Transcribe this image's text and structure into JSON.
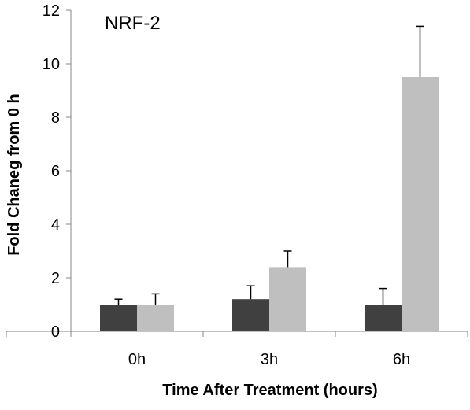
{
  "chart_data": {
    "type": "bar",
    "title": "NRF-2",
    "xlabel": "Time After Treatment (hours)",
    "ylabel": "Fold Chaneg from 0 h",
    "categories": [
      "0h",
      "3h",
      "6h"
    ],
    "ylim": [
      0,
      12
    ],
    "yticks": [
      0,
      2,
      4,
      6,
      8,
      10,
      12
    ],
    "grid": false,
    "legend": "none",
    "series": [
      {
        "values": [
          1.0,
          1.2,
          1.0
        ],
        "errors": [
          0.2,
          0.5,
          0.6
        ],
        "color": "#404040"
      },
      {
        "values": [
          1.0,
          2.4,
          9.5
        ],
        "errors": [
          0.4,
          0.6,
          1.9
        ],
        "color": "#bfbfbf"
      }
    ]
  }
}
